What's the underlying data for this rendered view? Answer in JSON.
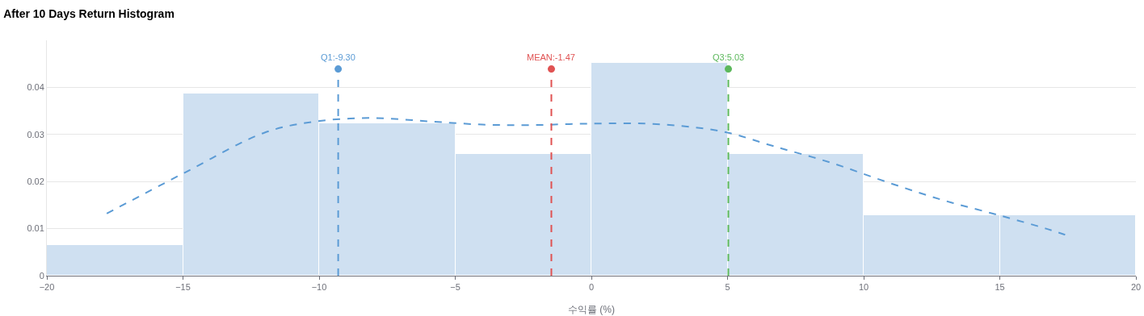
{
  "chart_data": {
    "type": "histogram",
    "title": "After 10 Days Return Histogram",
    "xlabel": "수익률 (%)",
    "bins": [
      -20,
      -15,
      -10,
      -5,
      0,
      5,
      10,
      15,
      20
    ],
    "values": [
      0.0065,
      0.0387,
      0.0323,
      0.0258,
      0.0452,
      0.0258,
      0.0129,
      0.0129
    ],
    "color": "#cfe0f1",
    "series": [
      {
        "type": "scatter",
        "marker": "circle",
        "colors": [
          "#5b9bd5",
          "#e05252",
          "#5cb85c"
        ],
        "x": [
          -9.3,
          -1.47,
          5.03
        ],
        "values": [
          0.0439,
          0.0439,
          0.0439
        ]
      },
      {
        "type": "line",
        "color": "#5b9bd5",
        "line_style": "dashed",
        "x": [
          -17.8,
          -14.9,
          -12,
          -10.2,
          -8.1,
          -6,
          -4,
          -2.2,
          -0.1,
          2,
          3.8,
          5,
          6.7,
          8.8,
          10.9,
          13,
          15,
          16.7,
          17.4
        ],
        "values": [
          0.0132,
          0.022,
          0.0304,
          0.0327,
          0.0335,
          0.0328,
          0.0321,
          0.032,
          0.0323,
          0.0323,
          0.0315,
          0.0304,
          0.0275,
          0.024,
          0.0198,
          0.0159,
          0.0128,
          0.01,
          0.0087
        ]
      }
    ],
    "ref_lines": [
      {
        "axis": "x",
        "value": -9.3,
        "label": "Q1:-9.30",
        "color": "#5b9bd5",
        "line_style": "dashed"
      },
      {
        "axis": "x",
        "value": -1.47,
        "label": "MEAN:-1.47",
        "color": "#e05252",
        "line_style": "dashed"
      },
      {
        "axis": "x",
        "value": 5.03,
        "label": "Q3:5.03",
        "color": "#5cb85c",
        "line_style": "dashed"
      }
    ],
    "xlim": [
      -20,
      20
    ],
    "xticks": [
      {
        "value": -20,
        "label": "−20"
      },
      {
        "value": -15,
        "label": "−15"
      },
      {
        "value": -10,
        "label": "−10"
      },
      {
        "value": -5,
        "label": "−5"
      },
      0,
      5,
      10,
      15,
      20
    ],
    "ylim": [
      0,
      0.05
    ],
    "yticks": [
      0,
      0.01,
      0.02,
      0.03,
      0.04
    ],
    "grid": "y"
  }
}
